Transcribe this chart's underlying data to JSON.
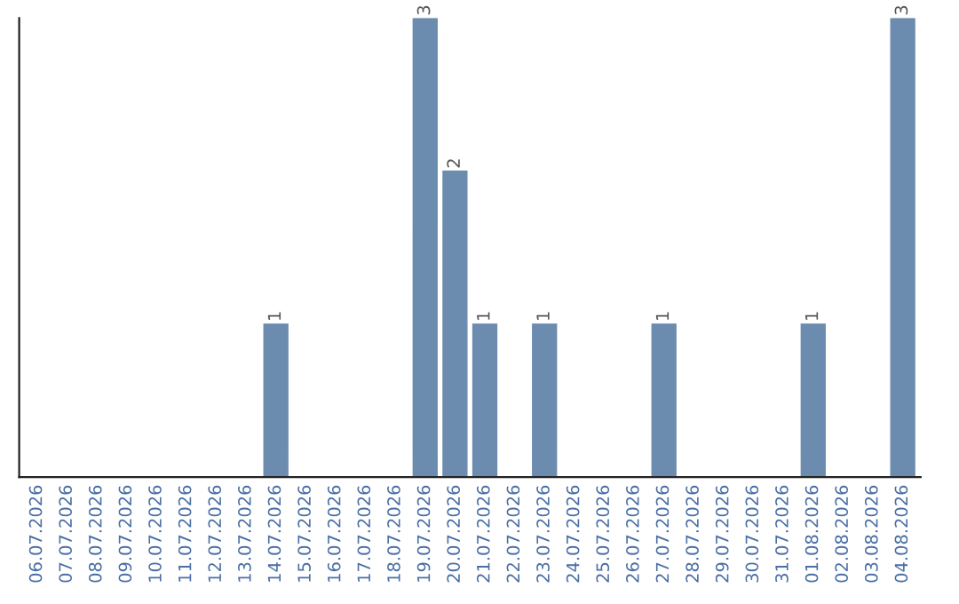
{
  "chart_data": {
    "type": "bar",
    "categories": [
      "06.07.2026",
      "07.07.2026",
      "08.07.2026",
      "09.07.2026",
      "10.07.2026",
      "11.07.2026",
      "12.07.2026",
      "13.07.2026",
      "14.07.2026",
      "15.07.2026",
      "16.07.2026",
      "17.07.2026",
      "18.07.2026",
      "19.07.2026",
      "20.07.2026",
      "21.07.2026",
      "22.07.2026",
      "23.07.2026",
      "24.07.2026",
      "25.07.2026",
      "26.07.2026",
      "27.07.2026",
      "28.07.2026",
      "29.07.2026",
      "30.07.2026",
      "31.07.2026",
      "01.08.2026",
      "02.08.2026",
      "03.08.2026",
      "04.08.2026"
    ],
    "values": [
      0,
      0,
      0,
      0,
      0,
      0,
      0,
      0,
      1,
      0,
      0,
      0,
      0,
      3,
      2,
      1,
      0,
      1,
      0,
      0,
      0,
      1,
      0,
      0,
      0,
      0,
      1,
      0,
      0,
      3
    ],
    "value_labels": [
      null,
      null,
      null,
      null,
      null,
      null,
      null,
      null,
      "1",
      null,
      null,
      null,
      null,
      "3",
      "2",
      "1",
      null,
      "1",
      null,
      null,
      null,
      "1",
      null,
      null,
      null,
      null,
      "1",
      null,
      null,
      "3"
    ],
    "color": "#6b8caf",
    "ylim": [
      0,
      3
    ],
    "tick_labels": "x",
    "grid": false
  }
}
